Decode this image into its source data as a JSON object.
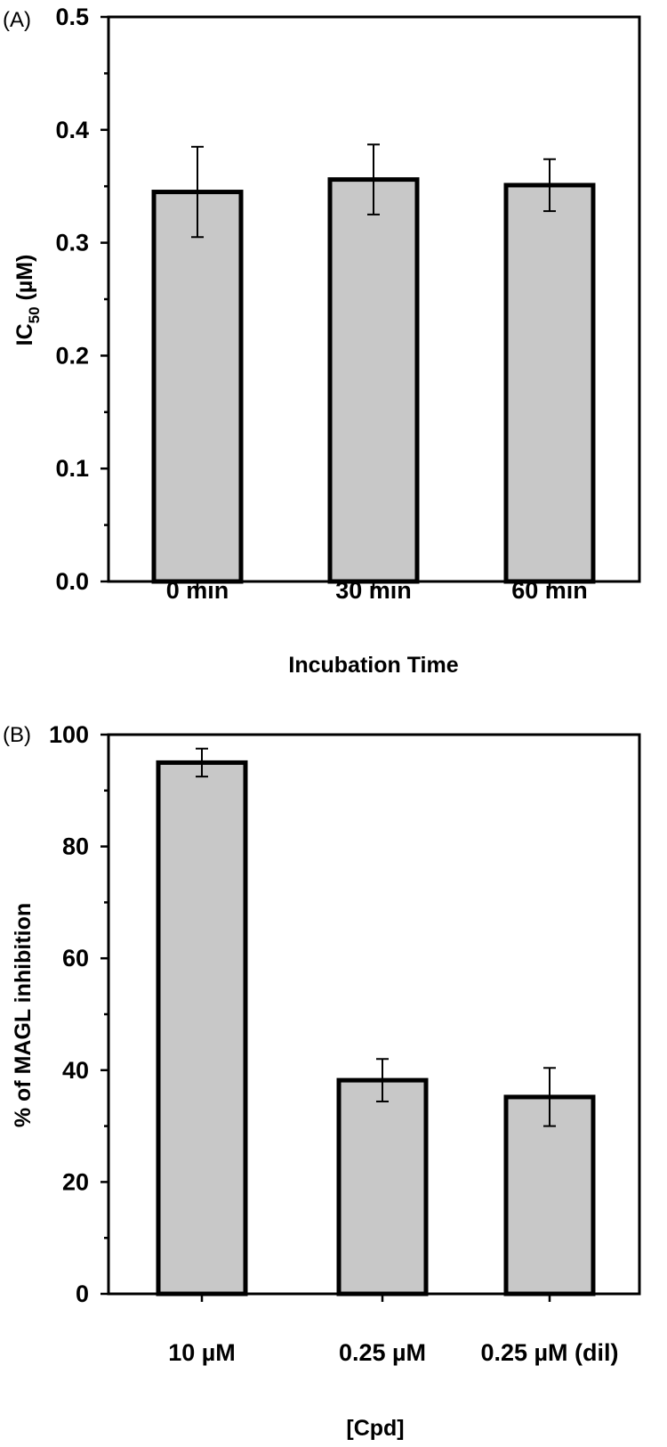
{
  "chart_data": [
    {
      "type": "bar",
      "panel_label": "(A)",
      "categories": [
        "0 min",
        "30 min",
        "60 min"
      ],
      "values": [
        0.345,
        0.356,
        0.351
      ],
      "errors": [
        0.04,
        0.031,
        0.023
      ],
      "xlabel": "Incubation Time",
      "ylabel_main": "IC",
      "ylabel_sub": "50",
      "ylabel_unit": " (µM)",
      "ylim": [
        0,
        0.5
      ],
      "yticks": [
        "0.0",
        "0.1",
        "0.2",
        "0.3",
        "0.4",
        "0.5"
      ],
      "bar_color": "#c8c8c8",
      "grid": false
    },
    {
      "type": "bar",
      "panel_label": "(B)",
      "categories": [
        "10 µM",
        "0.25 µM",
        "0.25 µM (dil)"
      ],
      "values": [
        95,
        38.2,
        35.2
      ],
      "errors": [
        2.5,
        3.8,
        5.2
      ],
      "xlabel": "[Cpd]",
      "ylabel": "% of MAGL inhibition",
      "ylim": [
        0,
        100
      ],
      "yticks": [
        "0",
        "20",
        "40",
        "60",
        "80",
        "100"
      ],
      "bar_color": "#c8c8c8",
      "grid": false
    }
  ]
}
